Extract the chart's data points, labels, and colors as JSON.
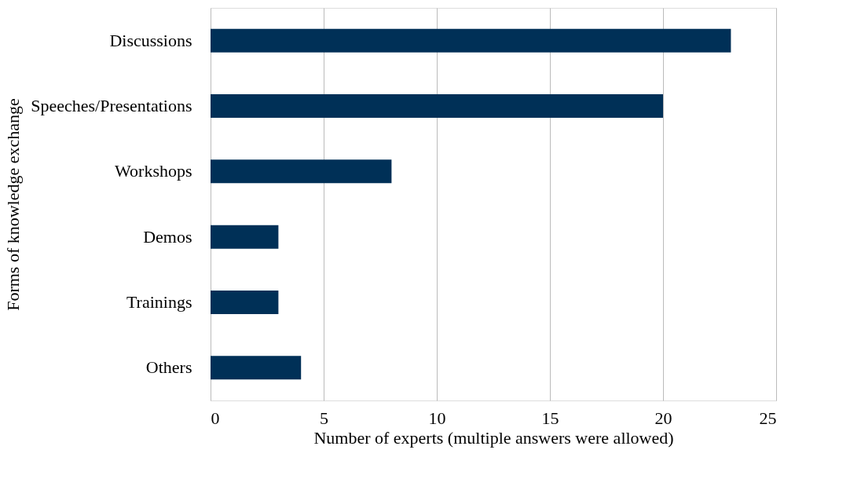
{
  "chart_data": {
    "type": "bar",
    "orientation": "horizontal",
    "xlabel": "Number of experts (multiple answers were allowed)",
    "ylabel": "Forms of knowledge exchange",
    "categories": [
      "Discussions",
      "Speeches/Presentations",
      "Workshops",
      "Demos",
      "Trainings",
      "Others"
    ],
    "values": [
      23,
      20,
      8,
      3,
      3,
      4
    ],
    "color": "#003057",
    "xlim": [
      0,
      25
    ],
    "xticks": [
      0,
      5,
      10,
      15,
      20,
      25
    ],
    "grid": "x"
  }
}
